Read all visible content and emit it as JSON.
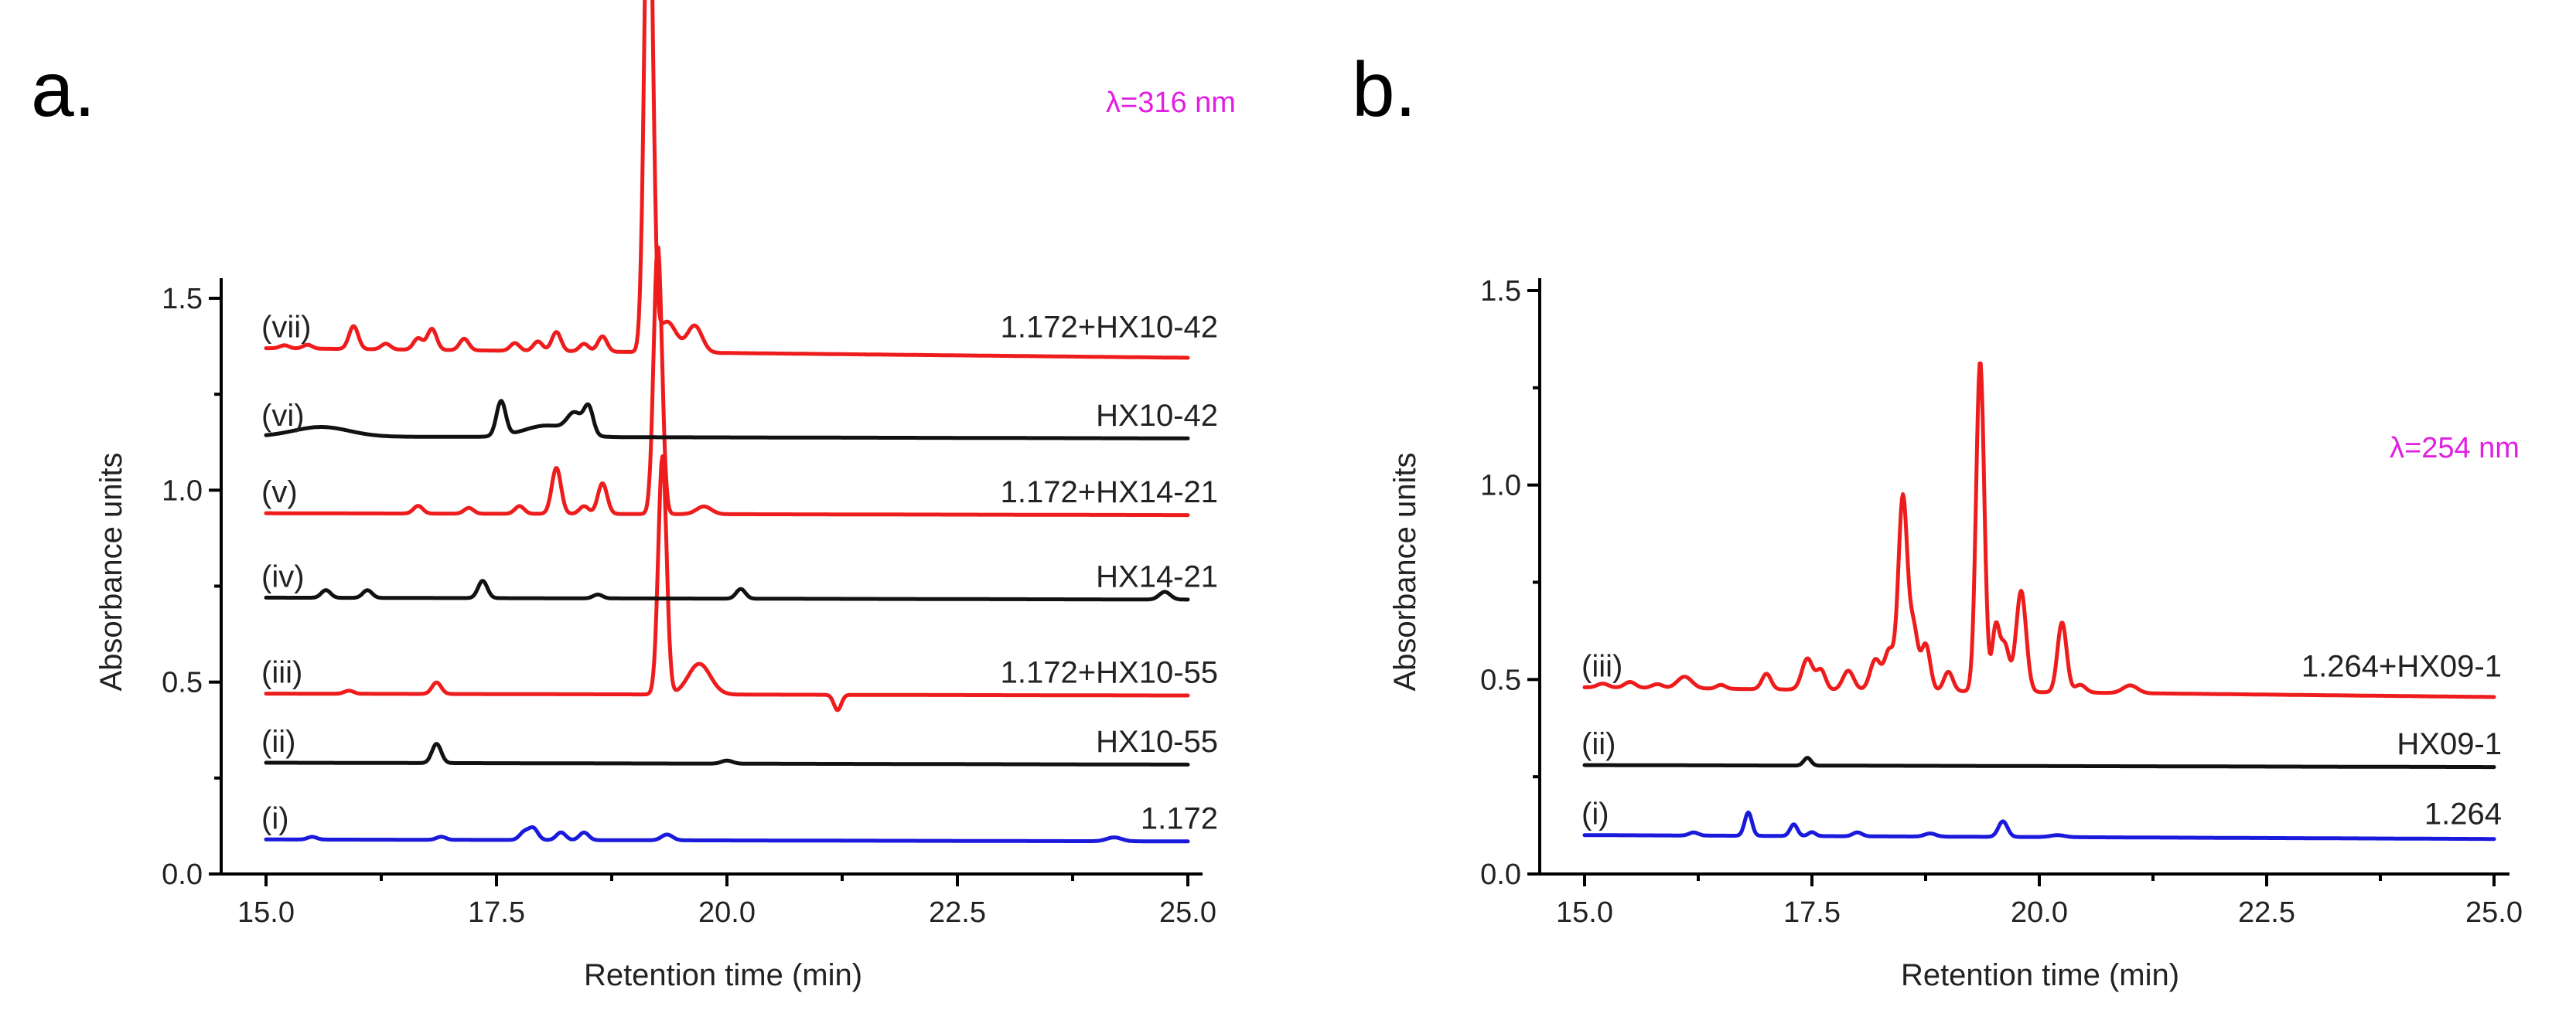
{
  "chart_data": [
    {
      "panel": "a.",
      "type": "line",
      "wavelength": "λ=316 nm",
      "xlabel": "Retention time (min)",
      "ylabel": "Absorbance units",
      "xlim": [
        15.0,
        25.0
      ],
      "ylim": [
        0.0,
        1.85
      ],
      "xticks": [
        "15.0",
        "17.5",
        "20.0",
        "22.5",
        "25.0"
      ],
      "yticks": [
        "0.0",
        "0.5",
        "1.0",
        "1.5"
      ],
      "grid": false,
      "colors": {
        "red": "#ee1c1c",
        "black": "#111111",
        "blue": "#1a1adc"
      },
      "series": [
        {
          "roman": "(i)",
          "name": "1.172",
          "color": "blue",
          "baseline": 0.09,
          "end": 0.085,
          "peaks": [
            [
              15.5,
              0.007,
              0.05
            ],
            [
              16.9,
              0.008,
              0.05
            ],
            [
              17.8,
              0.02,
              0.05
            ],
            [
              17.9,
              0.03,
              0.05
            ],
            [
              18.2,
              0.02,
              0.05
            ],
            [
              18.45,
              0.02,
              0.05
            ],
            [
              19.35,
              0.015,
              0.06
            ],
            [
              24.2,
              0.01,
              0.08
            ]
          ]
        },
        {
          "roman": "(ii)",
          "name": "HX10-55",
          "color": "black",
          "baseline": 0.29,
          "end": 0.285,
          "peaks": [
            [
              16.85,
              0.05,
              0.05
            ],
            [
              20.0,
              0.008,
              0.06
            ]
          ]
        },
        {
          "roman": "(iii)",
          "name": "1.172+HX10-55",
          "color": "red",
          "baseline": 0.47,
          "end": 0.465,
          "peaks": [
            [
              15.9,
              0.008,
              0.05
            ],
            [
              16.85,
              0.03,
              0.05
            ],
            [
              19.3,
              0.62,
              0.045
            ],
            [
              19.7,
              0.08,
              0.12
            ],
            [
              21.2,
              -0.04,
              0.04
            ]
          ]
        },
        {
          "roman": "(iv)",
          "name": "HX14-21",
          "color": "black",
          "baseline": 0.72,
          "end": 0.715,
          "peaks": [
            [
              15.65,
              0.02,
              0.05
            ],
            [
              16.1,
              0.02,
              0.05
            ],
            [
              17.35,
              0.045,
              0.05
            ],
            [
              18.6,
              0.01,
              0.05
            ],
            [
              20.15,
              0.025,
              0.05
            ],
            [
              24.75,
              0.02,
              0.06
            ]
          ]
        },
        {
          "roman": "(v)",
          "name": "1.172+HX14-21",
          "color": "red",
          "baseline": 0.94,
          "end": 0.935,
          "peaks": [
            [
              16.65,
              0.02,
              0.05
            ],
            [
              17.2,
              0.015,
              0.05
            ],
            [
              17.75,
              0.02,
              0.05
            ],
            [
              18.15,
              0.12,
              0.05
            ],
            [
              18.45,
              0.02,
              0.05
            ],
            [
              18.65,
              0.08,
              0.05
            ],
            [
              19.25,
              0.7,
              0.045
            ],
            [
              19.75,
              0.02,
              0.08
            ]
          ]
        },
        {
          "roman": "(vi)",
          "name": "HX10-42",
          "color": "black",
          "baseline": 1.14,
          "end": 1.135,
          "peaks": [
            [
              15.6,
              0.025,
              0.3
            ],
            [
              17.55,
              0.09,
              0.05
            ],
            [
              18.05,
              0.03,
              0.25
            ],
            [
              18.35,
              0.05,
              0.08
            ],
            [
              18.5,
              0.07,
              0.05
            ]
          ]
        },
        {
          "roman": "(vii)",
          "name": "1.172+HX10-42",
          "color": "red",
          "baseline": 1.37,
          "end": 1.345,
          "peaks": [
            [
              15.2,
              0.008,
              0.05
            ],
            [
              15.45,
              0.01,
              0.05
            ],
            [
              15.95,
              0.06,
              0.05
            ],
            [
              16.3,
              0.015,
              0.05
            ],
            [
              16.65,
              0.03,
              0.05
            ],
            [
              16.8,
              0.055,
              0.05
            ],
            [
              17.15,
              0.03,
              0.05
            ],
            [
              17.7,
              0.02,
              0.05
            ],
            [
              17.95,
              0.025,
              0.05
            ],
            [
              18.15,
              0.05,
              0.05
            ],
            [
              18.45,
              0.02,
              0.05
            ],
            [
              18.65,
              0.04,
              0.05
            ],
            [
              19.15,
              1.38,
              0.045
            ],
            [
              19.35,
              0.08,
              0.1
            ],
            [
              19.65,
              0.07,
              0.08
            ]
          ]
        }
      ]
    },
    {
      "panel": "b.",
      "type": "line",
      "wavelength": "λ=254 nm",
      "xlabel": "Retention time (min)",
      "ylabel": "Absorbance units",
      "xlim": [
        15.0,
        25.0
      ],
      "ylim": [
        0.0,
        1.5
      ],
      "xticks": [
        "15.0",
        "17.5",
        "20.0",
        "22.5",
        "25.0"
      ],
      "yticks": [
        "0.0",
        "0.5",
        "1.0",
        "1.5"
      ],
      "grid": false,
      "colors": {
        "red": "#ee1c1c",
        "black": "#111111",
        "blue": "#1a1adc"
      },
      "series": [
        {
          "roman": "(i)",
          "name": "1.264",
          "color": "blue",
          "baseline": 0.1,
          "end": 0.09,
          "peaks": [
            [
              16.2,
              0.008,
              0.05
            ],
            [
              16.8,
              0.06,
              0.04
            ],
            [
              17.3,
              0.03,
              0.04
            ],
            [
              17.5,
              0.01,
              0.04
            ],
            [
              18.0,
              0.01,
              0.05
            ],
            [
              18.8,
              0.008,
              0.06
            ],
            [
              19.6,
              0.04,
              0.05
            ],
            [
              20.2,
              0.005,
              0.08
            ]
          ]
        },
        {
          "roman": "(ii)",
          "name": "HX09-1",
          "color": "black",
          "baseline": 0.28,
          "end": 0.275,
          "peaks": [
            [
              17.45,
              0.02,
              0.04
            ]
          ]
        },
        {
          "roman": "(iii)",
          "name": "1.264+HX09-1",
          "color": "red",
          "baseline": 0.48,
          "end": 0.455,
          "peaks": [
            [
              15.2,
              0.01,
              0.06
            ],
            [
              15.5,
              0.015,
              0.06
            ],
            [
              15.8,
              0.01,
              0.06
            ],
            [
              16.1,
              0.03,
              0.08
            ],
            [
              16.5,
              0.01,
              0.05
            ],
            [
              17.0,
              0.04,
              0.05
            ],
            [
              17.45,
              0.08,
              0.06
            ],
            [
              17.6,
              0.05,
              0.05
            ],
            [
              17.9,
              0.05,
              0.06
            ],
            [
              18.2,
              0.08,
              0.06
            ],
            [
              18.35,
              0.1,
              0.05
            ],
            [
              18.5,
              0.5,
              0.05
            ],
            [
              18.62,
              0.15,
              0.045
            ],
            [
              18.75,
              0.12,
              0.05
            ],
            [
              19.0,
              0.05,
              0.05
            ],
            [
              19.35,
              0.85,
              0.045
            ],
            [
              19.52,
              0.16,
              0.04
            ],
            [
              19.62,
              0.12,
              0.05
            ],
            [
              19.8,
              0.26,
              0.055
            ],
            [
              20.25,
              0.18,
              0.05
            ],
            [
              20.45,
              0.02,
              0.06
            ],
            [
              21.0,
              0.02,
              0.08
            ]
          ]
        }
      ]
    }
  ]
}
